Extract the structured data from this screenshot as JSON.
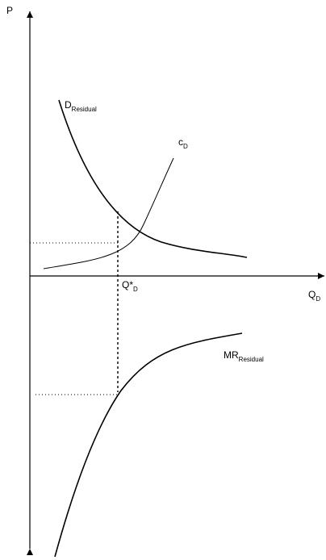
{
  "labels": {
    "p_axis": "P",
    "q_axis_main": "Q",
    "q_axis_sub": "D",
    "d_residual_main": "D",
    "d_residual_sub": "Residual",
    "c_main": "c",
    "c_sub": "D",
    "q_star_main": "Q*",
    "q_star_sub": "D",
    "mr_main": "MR",
    "mr_sub": "Residual"
  },
  "colors": {
    "line": "#000000",
    "background": "#ffffff"
  }
}
